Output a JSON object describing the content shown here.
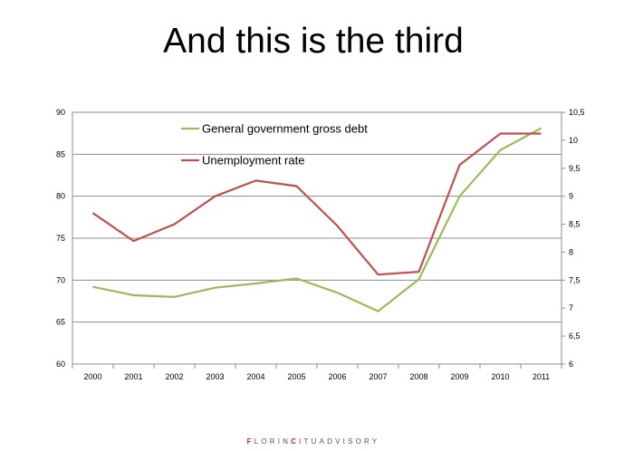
{
  "slide": {
    "title": "And this is the third"
  },
  "footer": {
    "brand_part1": "F",
    "brand_part2": "LORIN",
    "brand_part3": "C",
    "brand_part4": "ITUADVISORY"
  },
  "chart_data": {
    "type": "line",
    "title": "",
    "xlabel": "",
    "ylabel": "",
    "categories": [
      "2000",
      "2001",
      "2002",
      "2003",
      "2004",
      "2005",
      "2006",
      "2007",
      "2008",
      "2009",
      "2010",
      "2011"
    ],
    "y_left": {
      "min": 60,
      "max": 90,
      "step": 5,
      "ticks": [
        "60",
        "65",
        "70",
        "75",
        "80",
        "85",
        "90"
      ]
    },
    "y_right": {
      "min": 6,
      "max": 10.5,
      "step": 0.5,
      "ticks": [
        "6",
        "6,5",
        "7",
        "7,5",
        "8",
        "8,5",
        "9",
        "9,5",
        "10",
        "10,5"
      ]
    },
    "grid": true,
    "legend_position": "top-center-inside",
    "series": [
      {
        "name": "General government gross debt",
        "axis": "left",
        "color": "#9bbb59",
        "values": [
          69.2,
          68.2,
          68.0,
          69.1,
          69.6,
          70.2,
          68.5,
          66.3,
          70.1,
          80.0,
          85.5,
          88.1
        ]
      },
      {
        "name": "Unemployment rate",
        "axis": "right",
        "color": "#c0504d",
        "values": [
          8.7,
          8.2,
          8.5,
          9.0,
          9.28,
          9.18,
          8.47,
          7.6,
          7.65,
          9.56,
          10.12,
          10.12
        ]
      }
    ]
  }
}
